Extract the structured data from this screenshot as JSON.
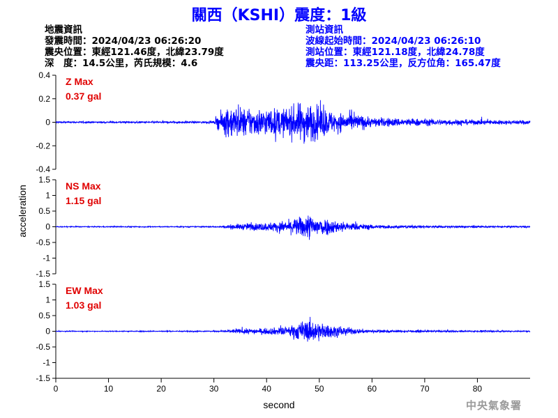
{
  "title": "關西（KSHI）震度：1級",
  "quake_info": {
    "heading": "地震資訊",
    "origin_time": "發震時間：2024/04/23 06:26:20",
    "epicenter": "震央位置：東經121.46度，北緯23.79度",
    "depth_magnitude": "深　度：14.5公里，芮氏規模：4.6"
  },
  "station_info": {
    "heading": "測站資訊",
    "wave_start": "波線起始時間：2024/04/23 06:26:10",
    "station_location": "測站位置：東經121.18度，北緯24.78度",
    "distance_azimuth": "震央距：113.25公里，反方位角：165.47度"
  },
  "footer": "中央氣象署",
  "colors": {
    "title": "#0000ff",
    "trace": "#0000ff",
    "pga_label": "#e00000",
    "footer": "#9a9a9a"
  },
  "chart_data": {
    "type": "line",
    "xlabel": "second",
    "ylabel": "acceleration",
    "xlim": [
      0,
      90
    ],
    "x_ticks": [
      0,
      10,
      20,
      30,
      40,
      50,
      60,
      70,
      80
    ],
    "panels": [
      {
        "component": "Z",
        "max_label": "Z Max",
        "max_value": "0.37 gal",
        "ylim": [
          -0.4,
          0.4
        ],
        "y_ticks": [
          -0.4,
          -0.2,
          0,
          0.2,
          0.4
        ],
        "y_tick_labels": [
          "-0.4",
          "-0.2",
          "0",
          "0.2",
          "0.4"
        ],
        "envelope": {
          "t": [
            0,
            30,
            31,
            33,
            36,
            40,
            44,
            47,
            50,
            53,
            57,
            60,
            65,
            70,
            80,
            90
          ],
          "amp": [
            0.012,
            0.015,
            0.12,
            0.24,
            0.2,
            0.2,
            0.2,
            0.3,
            0.24,
            0.14,
            0.12,
            0.07,
            0.06,
            0.05,
            0.035,
            0.03
          ]
        }
      },
      {
        "component": "NS",
        "max_label": "NS Max",
        "max_value": "1.15 gal",
        "ylim": [
          -1.5,
          1.5
        ],
        "y_ticks": [
          -1.5,
          -1,
          -0.5,
          0,
          0.5,
          1,
          1.5
        ],
        "y_tick_labels": [
          "-1.5",
          "-1",
          "-0.5",
          "0",
          "0.5",
          "1",
          "1.5"
        ],
        "envelope": {
          "t": [
            0,
            31,
            33,
            36,
            40,
            44,
            46,
            48,
            50,
            53,
            57,
            60,
            65,
            70,
            80,
            90
          ],
          "amp": [
            0.025,
            0.03,
            0.12,
            0.18,
            0.22,
            0.32,
            0.5,
            0.7,
            0.55,
            0.35,
            0.18,
            0.12,
            0.09,
            0.07,
            0.05,
            0.04
          ]
        }
      },
      {
        "component": "EW",
        "max_label": "EW Max",
        "max_value": "1.03 gal",
        "ylim": [
          -1.5,
          1.5
        ],
        "y_ticks": [
          -1.5,
          -1,
          -0.5,
          0,
          0.5,
          1,
          1.5
        ],
        "y_tick_labels": [
          "-1.5",
          "-1",
          "-0.5",
          "0",
          "0.5",
          "1",
          "1.5"
        ],
        "envelope": {
          "t": [
            0,
            31,
            33,
            36,
            40,
            44,
            46,
            48,
            50,
            53,
            57,
            60,
            65,
            70,
            80,
            90
          ],
          "amp": [
            0.02,
            0.03,
            0.1,
            0.14,
            0.16,
            0.25,
            0.48,
            0.62,
            0.5,
            0.3,
            0.14,
            0.09,
            0.06,
            0.05,
            0.04,
            0.035
          ]
        }
      }
    ]
  }
}
